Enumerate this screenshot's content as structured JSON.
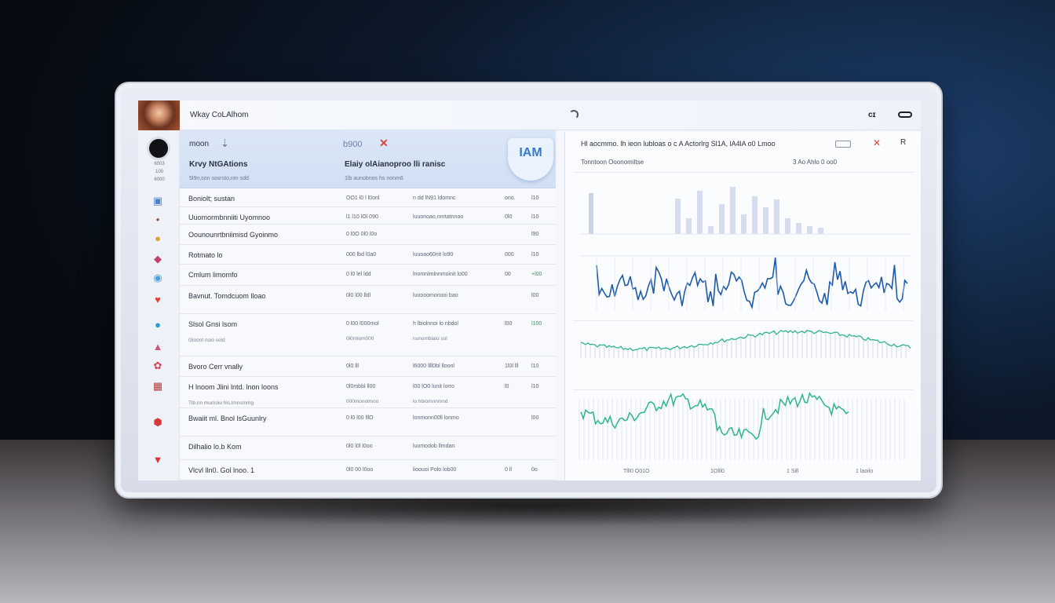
{
  "header": {
    "app_title": "Wkay CoLAlhom"
  },
  "rail": {
    "meta": [
      "6003",
      "100",
      "6000"
    ],
    "icons": [
      {
        "name": "document-icon",
        "glyph": "▣",
        "color": "#4a82c9"
      },
      {
        "name": "dot-icon",
        "glyph": "•",
        "color": "#8a5a4a"
      },
      {
        "name": "coin-icon",
        "glyph": "●",
        "color": "#d9a23a"
      },
      {
        "name": "shield-icon",
        "glyph": "◆",
        "color": "#c0436a"
      },
      {
        "name": "wave-icon",
        "glyph": "◉",
        "color": "#4aa0d8"
      },
      {
        "name": "heart-icon",
        "glyph": "♥",
        "color": "#e0443a"
      },
      {
        "name": "globe-icon",
        "glyph": "●",
        "color": "#2a9bd6"
      },
      {
        "name": "flask-icon",
        "glyph": "▲",
        "color": "#c95a7a"
      },
      {
        "name": "badge-icon",
        "glyph": "✿",
        "color": "#d0435a"
      },
      {
        "name": "grid-icon",
        "glyph": "▦",
        "color": "#b04040"
      },
      {
        "name": "alert-icon",
        "glyph": "⬢",
        "color": "#d83a3a"
      },
      {
        "name": "warning-icon",
        "glyph": "▼",
        "color": "#d83a3a"
      }
    ]
  },
  "head_card": {
    "left_label": "moon",
    "left_icon": "⇣",
    "value_label": "b900",
    "close_glyph": "✕",
    "title": "Krvy NtGAtions",
    "subtitle": "Elaiy olAianoproo lli ranisc",
    "small_left": "5l9n,son sosrsto,nm sdd",
    "small_right": "1lb aunobnos hs nonm6",
    "badge_text": "IAM"
  },
  "table_rows": [
    {
      "name": "Boniolt; sustan",
      "col2": "OO1 l0 l l0onl",
      "col3": "n dd lN91 ldomnc",
      "col4": "ono.",
      "col5": "l10"
    },
    {
      "name": "Uuomormbnniiti Uyomnoo",
      "col2": "l1 l10 lOl 090",
      "col3": "luuonoao,nnrtatnnoo",
      "col4": "0l0",
      "col5": "l10"
    },
    {
      "name": "Oounounrtbniimisd Gyoinmo",
      "col2": "0 l0O 0l0 l0o",
      "col3": "",
      "col4": "",
      "col5": "l90"
    },
    {
      "name": "Rotmato lo",
      "col2": "000 lbd l0a0",
      "col3": "luuoao60nit lo90",
      "col4": "000",
      "col5": "l10"
    },
    {
      "name": "Cmlum limomfo",
      "col2": "0 l0 lel ldd",
      "col3": "lnomnlmlnnmoinit lo00",
      "col4": "00",
      "col5": "+l00"
    },
    {
      "name": "Bavnut. Tomdcuom lloao",
      "col2": "0l0 l00 lldl",
      "col3": "luoooomonooi bao",
      "col4": "",
      "col5": "l00"
    },
    {
      "name": "Slsol Gnsi lsom",
      "col2": "0 l00 l000mol",
      "col3": "h lbiolnnoi lo nbdol",
      "col4": "l00",
      "col5": "l100",
      "sub": "Gloont nsio sold",
      "sub2": "0l0mlom000",
      "sub3": "nunomblaio sol"
    },
    {
      "name": "Bvoro Cerr vnally",
      "col2": "0l0 lll",
      "col3": "l6000 llll0bl lloonl",
      "col4": "1l0l lll",
      "col5": "l10"
    },
    {
      "name": "H lnoom Jlini lntd. lnon loons",
      "col2": "0l0mbbl ll00",
      "col3": "l00 lO0 lunit lorro",
      "col4": "l0",
      "col5": "l10",
      "sub": "Tlb,nn mumoiu hls,lmnsmmg",
      "sub2": "000monolmoo",
      "sub3": "lo hbiomnnmnd"
    },
    {
      "name": "Bwaiit ml. Bnol lsGuunlry",
      "col2": "0 l0 l00 lllO",
      "col3": "lonmonn00ll lonmo",
      "col4": "",
      "col5": "l00"
    },
    {
      "name": "Dilhalio lo.b Kom",
      "col2": "0l0 l0l l0oo",
      "col3": "luomodob llmdan",
      "col4": "",
      "col5": ""
    },
    {
      "name": "Vlcvl lln0. Gol lnoo. 1",
      "col2": "0l0 00 l0oo",
      "col3": "lioouoi Polo lob00",
      "col4": "0 ll",
      "col5": "0o"
    }
  ],
  "chart_panel": {
    "title": "Hl aocmmo. lh ieon lubloas o c A Actorlrg Sl1A, lA4lA o0 Lmoo",
    "subtitle": "Tonntoon Ooonomiltse",
    "subtitle_right": "3 Ao Ahlo   0 oo0",
    "close_glyph": "✕",
    "menu_glyph": "R",
    "x_tick_labels": [
      "Tlll0   O01O",
      "1Olll0",
      "1 Sill",
      "1 laoilo"
    ],
    "colors": {
      "line": "#1f5aa8",
      "green": "#2fb58a",
      "bars": "#c9d3e8"
    }
  }
}
